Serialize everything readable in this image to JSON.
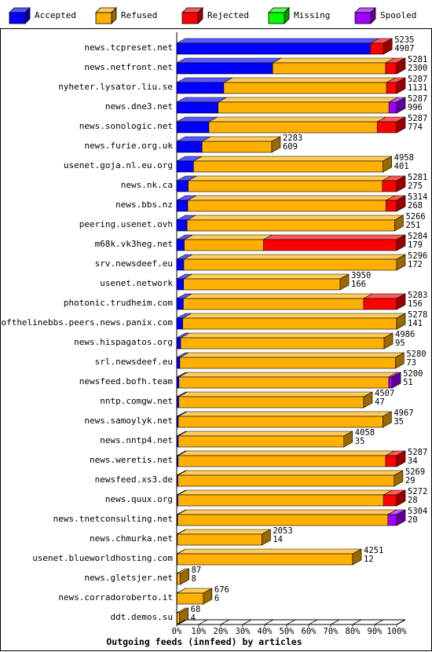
{
  "chart_data": {
    "type": "bar",
    "orientation": "horizontal",
    "stacked": true,
    "title": "Outgoing feeds (innfeed) by articles",
    "x_axis": {
      "ticks": [
        "0%",
        "10%",
        "20%",
        "30%",
        "40%",
        "50%",
        "60%",
        "70%",
        "80%",
        "90%",
        "100%"
      ],
      "range": [
        0,
        100
      ]
    },
    "legend": {
      "position": "top",
      "items": [
        {
          "name": "Accepted",
          "color": "#0000ff"
        },
        {
          "name": "Refused",
          "color": "#ffb000"
        },
        {
          "name": "Rejected",
          "color": "#ff0000"
        },
        {
          "name": "Missing",
          "color": "#00ff00"
        },
        {
          "name": "Spooled",
          "color": "#a000ff"
        }
      ]
    },
    "rows": [
      {
        "name": "news.tcpreset.net",
        "total": "5235",
        "accepted": "4907",
        "seg": {
          "accepted": 88,
          "refused": 0,
          "rejected": 6,
          "spooled": 0
        }
      },
      {
        "name": "news.netfront.net",
        "total": "5281",
        "accepted": "2300",
        "seg": {
          "accepted": 43.6,
          "refused": 51.4,
          "rejected": 5,
          "spooled": 0
        }
      },
      {
        "name": "nyheter.lysator.liu.se",
        "total": "5287",
        "accepted": "1131",
        "seg": {
          "accepted": 21.4,
          "refused": 74,
          "rejected": 4.6,
          "spooled": 0
        }
      },
      {
        "name": "news.dne3.net",
        "total": "5287",
        "accepted": "996",
        "seg": {
          "accepted": 18.8,
          "refused": 77.7,
          "rejected": 0,
          "spooled": 3.5
        }
      },
      {
        "name": "news.sonologic.net",
        "total": "5287",
        "accepted": "774",
        "seg": {
          "accepted": 14.6,
          "refused": 76.6,
          "rejected": 8.8,
          "spooled": 0
        }
      },
      {
        "name": "news.furie.org.uk",
        "total": "2283",
        "accepted": "609",
        "seg": {
          "accepted": 11.5,
          "refused": 31.7,
          "rejected": 0,
          "spooled": 0
        }
      },
      {
        "name": "usenet.goja.nl.eu.org",
        "total": "4958",
        "accepted": "401",
        "seg": {
          "accepted": 7.6,
          "refused": 86.2,
          "rejected": 0,
          "spooled": 0
        }
      },
      {
        "name": "news.nk.ca",
        "total": "5281",
        "accepted": "275",
        "seg": {
          "accepted": 5.2,
          "refused": 88.3,
          "rejected": 6.5,
          "spooled": 0
        }
      },
      {
        "name": "news.bbs.nz",
        "total": "5314",
        "accepted": "268",
        "seg": {
          "accepted": 5,
          "refused": 90.2,
          "rejected": 4.8,
          "spooled": 0
        }
      },
      {
        "name": "peering.usenet.ovh",
        "total": "5266",
        "accepted": "251",
        "seg": {
          "accepted": 4.7,
          "refused": 94.4,
          "rejected": 0,
          "spooled": 0
        }
      },
      {
        "name": "m68k.vk3heg.net",
        "total": "5284",
        "accepted": "179",
        "seg": {
          "accepted": 3.4,
          "refused": 36.1,
          "rejected": 60.5,
          "spooled": 0
        }
      },
      {
        "name": "srv.newsdeef.eu",
        "total": "5296",
        "accepted": "172",
        "seg": {
          "accepted": 3.2,
          "refused": 96.8,
          "rejected": 0,
          "spooled": 0
        }
      },
      {
        "name": "usenet.network",
        "total": "3950",
        "accepted": "166",
        "seg": {
          "accepted": 3.1,
          "refused": 71.2,
          "rejected": 0,
          "spooled": 0
        }
      },
      {
        "name": "photonic.trudheim.com",
        "total": "5283",
        "accepted": "156",
        "seg": {
          "accepted": 3,
          "refused": 82,
          "rejected": 15,
          "spooled": 0
        }
      },
      {
        "name": "endofthelinebbs.peers.news.panix.com",
        "total": "5278",
        "accepted": "141",
        "seg": {
          "accepted": 2.7,
          "refused": 97.3,
          "rejected": 0,
          "spooled": 0
        }
      },
      {
        "name": "news.hispagatos.org",
        "total": "4986",
        "accepted": "95",
        "seg": {
          "accepted": 1.8,
          "refused": 92.5,
          "rejected": 0,
          "spooled": 0
        }
      },
      {
        "name": "srl.newsdeef.eu",
        "total": "5280",
        "accepted": "73",
        "seg": {
          "accepted": 1.4,
          "refused": 98,
          "rejected": 0,
          "spooled": 0
        }
      },
      {
        "name": "newsfeed.bofh.team",
        "total": "5200",
        "accepted": "51",
        "seg": {
          "accepted": 1,
          "refused": 95.4,
          "rejected": 0,
          "spooled": 1.5
        }
      },
      {
        "name": "nntp.comgw.net",
        "total": "4507",
        "accepted": "47",
        "seg": {
          "accepted": 0.9,
          "refused": 84.1,
          "rejected": 0,
          "spooled": 0
        }
      },
      {
        "name": "news.samoylyk.net",
        "total": "4967",
        "accepted": "35",
        "seg": {
          "accepted": 0.7,
          "refused": 93,
          "rejected": 0,
          "spooled": 0
        }
      },
      {
        "name": "news.nntp4.net",
        "total": "4058",
        "accepted": "35",
        "seg": {
          "accepted": 0.7,
          "refused": 75.3,
          "rejected": 0,
          "spooled": 0
        }
      },
      {
        "name": "news.weretis.net",
        "total": "5287",
        "accepted": "34",
        "seg": {
          "accepted": 0.6,
          "refused": 94.4,
          "rejected": 5,
          "spooled": 0
        }
      },
      {
        "name": "newsfeed.xs3.de",
        "total": "5269",
        "accepted": "29",
        "seg": {
          "accepted": 0.5,
          "refused": 98.4,
          "rejected": 0,
          "spooled": 0
        }
      },
      {
        "name": "news.quux.org",
        "total": "5272",
        "accepted": "28",
        "seg": {
          "accepted": 0.5,
          "refused": 93.5,
          "rejected": 6,
          "spooled": 0
        }
      },
      {
        "name": "news.tnetconsulting.net",
        "total": "5304",
        "accepted": "20",
        "seg": {
          "accepted": 0.4,
          "refused": 95.6,
          "rejected": 0,
          "spooled": 4
        }
      },
      {
        "name": "news.chmurka.net",
        "total": "2053",
        "accepted": "14",
        "seg": {
          "accepted": 0.3,
          "refused": 38.4,
          "rejected": 0,
          "spooled": 0
        }
      },
      {
        "name": "usenet.blueworldhosting.com",
        "total": "4251",
        "accepted": "12",
        "seg": {
          "accepted": 0.2,
          "refused": 79.8,
          "rejected": 0,
          "spooled": 0
        }
      },
      {
        "name": "news.gletsjer.net",
        "total": "87",
        "accepted": "8",
        "seg": {
          "accepted": 0.15,
          "refused": 1.5,
          "rejected": 0,
          "spooled": 0
        }
      },
      {
        "name": "news.corradoroberto.it",
        "total": "676",
        "accepted": "6",
        "seg": {
          "accepted": 0.1,
          "refused": 12,
          "rejected": 0,
          "spooled": 0
        }
      },
      {
        "name": "ddt.demos.su",
        "total": "68",
        "accepted": "4",
        "seg": {
          "accepted": 0.1,
          "refused": 1.2,
          "rejected": 0,
          "spooled": 0
        }
      }
    ]
  }
}
